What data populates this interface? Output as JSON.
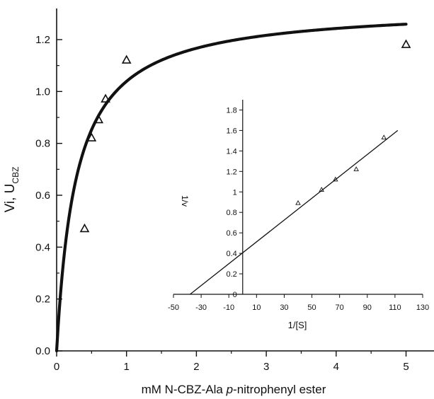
{
  "chart_data": [
    {
      "type": "scatter",
      "xlabel": "mM N-CBZ-Ala p-nitrophenyl ester",
      "xlabel_parts": [
        "mM N-CBZ-Ala ",
        "p",
        "-nitrophenyl ester"
      ],
      "ylabel_main": "Vi, U",
      "ylabel_sub": "CBZ",
      "xlim": [
        0,
        5.4
      ],
      "ylim": [
        0,
        1.32
      ],
      "x_ticks": [
        0,
        1,
        2,
        3,
        4,
        5
      ],
      "x_tick_labels": [
        "0",
        "1",
        "2",
        "3",
        "4",
        "5"
      ],
      "y_ticks": [
        0.0,
        0.2,
        0.4,
        0.6,
        0.8,
        1.0,
        1.2
      ],
      "y_tick_labels": [
        "0.0",
        "0.2",
        "0.4",
        "0.6",
        "0.8",
        "1.0",
        "1.2"
      ],
      "series": [
        {
          "kind": "points",
          "marker": "open-triangle",
          "x": [
            0.4,
            0.5,
            0.6,
            0.7,
            1.0,
            5.0
          ],
          "y": [
            0.47,
            0.82,
            0.89,
            0.97,
            1.12,
            1.18
          ]
        },
        {
          "kind": "fit-curve",
          "model": "Michaelis-Menten",
          "vmax": 1.33,
          "km": 0.28,
          "x_range": [
            0,
            5.0
          ]
        }
      ],
      "grid": false
    },
    {
      "type": "scatter",
      "role": "inset",
      "xlabel": "1/[S]",
      "ylabel": "1/v",
      "xlim": [
        -50,
        130
      ],
      "ylim": [
        0,
        1.9
      ],
      "x_ticks": [
        -50,
        -30,
        -10,
        10,
        30,
        50,
        70,
        90,
        110,
        130
      ],
      "x_tick_labels": [
        "-50",
        "-30",
        "-10",
        "10",
        "30",
        "50",
        "70",
        "90",
        "110",
        "130"
      ],
      "y_ticks": [
        0,
        0.2,
        0.4,
        0.6,
        0.8,
        1,
        1.2,
        1.4,
        1.6,
        1.8
      ],
      "y_tick_labels": [
        "0",
        "0.2",
        "0.4",
        "0.6",
        "0.8",
        "1",
        "1.2",
        "1.4",
        "1.6",
        "1.8"
      ],
      "y_axis_at_x": 0,
      "series": [
        {
          "kind": "points",
          "marker": "open-triangle",
          "x": [
            40,
            57,
            67,
            82,
            102
          ],
          "y": [
            0.89,
            1.02,
            1.12,
            1.22,
            1.53
          ]
        },
        {
          "kind": "fit-line",
          "x": [
            -38,
            112
          ],
          "y": [
            0.0,
            1.6
          ]
        }
      ],
      "grid": false
    }
  ]
}
